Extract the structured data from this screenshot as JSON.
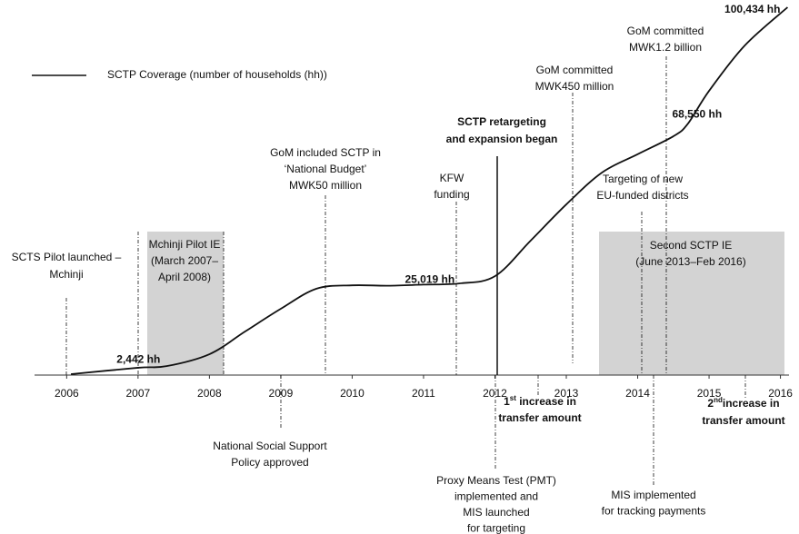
{
  "chart_data": {
    "type": "line",
    "x": [
      2006.06,
      2007.0,
      2007.4,
      2008.0,
      2008.5,
      2009.0,
      2009.5,
      2010.0,
      2010.5,
      2011.0,
      2011.5,
      2012.0,
      2012.5,
      2013.0,
      2013.5,
      2014.0,
      2014.5,
      2014.7,
      2015.0,
      2015.5,
      2016.1
    ],
    "series": [
      {
        "name": "SCTP Coverage (number of households (hh))",
        "color": "#111111",
        "values": [
          250,
          2000,
          2442,
          5700,
          11900,
          18100,
          23600,
          24500,
          24400,
          24700,
          25019,
          27000,
          36700,
          46600,
          55300,
          60300,
          65200,
          68550,
          77600,
          90000,
          100434
        ],
        "value_labels": [
          null,
          null,
          "2,442 hh",
          null,
          null,
          null,
          null,
          null,
          null,
          null,
          "25,019 hh",
          null,
          null,
          null,
          null,
          null,
          null,
          "68,550 hh",
          null,
          null,
          "100,434 hh"
        ]
      }
    ],
    "xlim": [
      2005.55,
      2016.12
    ],
    "xticks": [
      2006,
      2007,
      2008,
      2009,
      2010,
      2011,
      2012,
      2013,
      2014,
      2015,
      2016
    ],
    "ylim": [
      0,
      100434
    ],
    "legend": "upper left",
    "annotations": [
      {
        "text": [
          [
            "SCTS Pilot launched –"
          ],
          [
            "Mchinji"
          ]
        ]
      },
      {
        "text": [
          [
            "Mchinji Pilot IE"
          ],
          [
            "(March 2007–"
          ],
          [
            "April 2008)"
          ]
        ]
      },
      {
        "text": [
          [
            "GoM included SCTP in"
          ],
          [
            "‘National Budget’"
          ],
          [
            "MWK50 million"
          ]
        ]
      },
      {
        "text": [
          [
            "KFW"
          ],
          [
            "funding"
          ]
        ]
      },
      {
        "text": [
          [
            "SCTP retargeting"
          ],
          [
            "and expansion began"
          ]
        ],
        "bold": true
      },
      {
        "text": [
          [
            "GoM committed"
          ],
          [
            "MWK450 million"
          ]
        ]
      },
      {
        "text": [
          [
            "GoM committed"
          ],
          [
            "MWK1.2 billion"
          ]
        ]
      },
      {
        "text": [
          [
            "Targeting of new"
          ],
          [
            "EU-funded districts"
          ]
        ]
      },
      {
        "text": [
          [
            "Second SCTP IE"
          ],
          [
            "(June 2013–Feb 2016)"
          ]
        ]
      },
      {
        "text": [
          [
            "National Social Support"
          ],
          [
            "Policy approved"
          ]
        ]
      },
      {
        "text": [
          [
            "1",
            "st",
            " increase in"
          ],
          [
            "transfer amount"
          ]
        ],
        "bold": true,
        "superscript": true
      },
      {
        "text": [
          [
            "Proxy Means Test (PMT)"
          ],
          [
            "implemented and"
          ],
          [
            "MIS launched"
          ],
          [
            "for targeting"
          ]
        ]
      },
      {
        "text": [
          [
            "MIS implemented"
          ],
          [
            "for tracking payments"
          ]
        ]
      },
      {
        "text": [
          [
            "2",
            "nd",
            "increase in"
          ],
          [
            "transfer amount"
          ]
        ],
        "bold": true,
        "superscript": true
      }
    ]
  }
}
